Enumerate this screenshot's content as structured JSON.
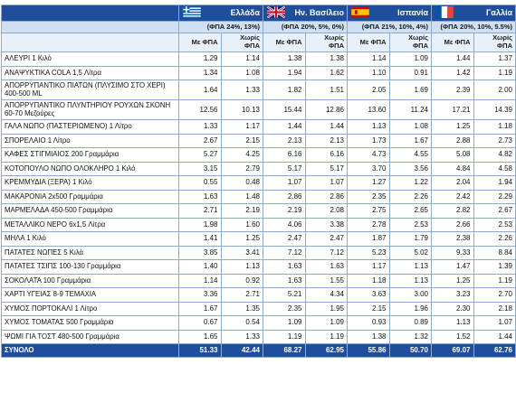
{
  "header": {
    "countries": [
      {
        "name": "Ελλάδα",
        "vat": "(ΦΠΑ 24%, 13%)",
        "flag": "greece-flag-icon"
      },
      {
        "name": "Ην. Βασίλειο",
        "vat": "(ΦΠΑ 20%, 5%, 0%)",
        "flag": "uk-flag-icon"
      },
      {
        "name": "Ισπανία",
        "vat": "(ΦΠΑ 21%, 10%, 4%)",
        "flag": "spain-flag-icon"
      },
      {
        "name": "Γαλλία",
        "vat": "(ΦΠΑ 20%, 10%, 5.5%)",
        "flag": "france-flag-icon"
      }
    ],
    "with_vat": "Με ΦΠΑ",
    "without_vat": "Χωρίς ΦΠΑ"
  },
  "rows": [
    {
      "name": "ΑΛΕΥΡΙ 1 Κιλό",
      "v": [
        "1.29",
        "1.14",
        "1.38",
        "1.38",
        "1.14",
        "1.09",
        "1.44",
        "1.37"
      ]
    },
    {
      "name": "ΑΝΑΨΥΚΤΙΚΑ COLA 1,5 Λίτρα",
      "v": [
        "1.34",
        "1.08",
        "1.94",
        "1.62",
        "1.10",
        "0.91",
        "1.42",
        "1.19"
      ]
    },
    {
      "name": "ΑΠΟΡΡΥΠΑΝΤΙΚΟ ΠΙΑΤΩΝ (ΠΛΥΣΙΜΟ ΣΤΟ ΧΕΡΙ) 400-500 ML",
      "v": [
        "1.64",
        "1.33",
        "1.82",
        "1.51",
        "2.05",
        "1.69",
        "2.39",
        "2.00"
      ]
    },
    {
      "name": "ΑΠΟΡΡΥΠΑΝΤΙΚΟ ΠΛΥΝΤΗΡΙΟΥ ΡΟΥΧΩΝ ΣΚΟΝΗ 60-70 Μεζούρες",
      "v": [
        "12.56",
        "10.13",
        "15.44",
        "12.86",
        "13.60",
        "11.24",
        "17.21",
        "14.39"
      ]
    },
    {
      "name": "ΓΑΛΑ ΝΩΠΟ (ΠΑΣΤΕΡΙΩΜΕΝΟ) 1 Λίτρο",
      "v": [
        "1.33",
        "1.17",
        "1.44",
        "1.44",
        "1.13",
        "1.08",
        "1.25",
        "1.18"
      ]
    },
    {
      "name": "ΣΠΟΡΕΛΑΙΟ 1 Λίτρο",
      "v": [
        "2.67",
        "2.15",
        "2.13",
        "2.13",
        "1.73",
        "1.67",
        "2.88",
        "2.73"
      ]
    },
    {
      "name": "ΚΑΦΕΣ ΣΤΙΓΜΙΑΙΟΣ 200 Γραμμάρια",
      "v": [
        "5.27",
        "4.25",
        "6.16",
        "6.16",
        "4.73",
        "4.55",
        "5.08",
        "4.82"
      ]
    },
    {
      "name": "ΚΟΤΟΠΟΥΛΟ ΝΩΠΟ ΟΛΟΚΛΗΡΟ 1 Κιλό",
      "v": [
        "3.15",
        "2.79",
        "5.17",
        "5.17",
        "3.70",
        "3.56",
        "4.84",
        "4.58"
      ]
    },
    {
      "name": "ΚΡΕΜΜΥΔΙΑ (ΞΕΡΑ) 1 Κιλό",
      "v": [
        "0.55",
        "0.48",
        "1.07",
        "1.07",
        "1.27",
        "1.22",
        "2.04",
        "1.94"
      ]
    },
    {
      "name": "ΜΑΚΑΡΟΝΙΑ 2x500 Γραμμάρια",
      "v": [
        "1.63",
        "1.48",
        "2.86",
        "2.86",
        "2.35",
        "2.26",
        "2.42",
        "2.29"
      ]
    },
    {
      "name": "ΜΑΡΜΕΛΑΔΑ 450-500 Γραμμάρια",
      "v": [
        "2.71",
        "2.19",
        "2.19",
        "2.08",
        "2.75",
        "2.65",
        "2.82",
        "2.67"
      ]
    },
    {
      "name": "ΜΕΤΑΛΛΙΚΟ ΝΕΡΟ 6x1,5 Λίτρα",
      "v": [
        "1.98",
        "1.60",
        "4.06",
        "3.38",
        "2.78",
        "2.53",
        "2.66",
        "2.53"
      ]
    },
    {
      "name": "ΜΗΛΑ 1 Κιλό",
      "v": [
        "1.41",
        "1.25",
        "2.47",
        "2.47",
        "1.87",
        "1.79",
        "2.38",
        "2.26"
      ]
    },
    {
      "name": "ΠΑΤΑΤΕΣ ΝΩΠΕΣ 5 Κιλά",
      "v": [
        "3.85",
        "3.41",
        "7.12",
        "7.12",
        "5.23",
        "5.02",
        "9.33",
        "8.84"
      ]
    },
    {
      "name": "ΠΑΤΑΤΕΣ ΤΣΙΠΣ 100-130 Γραμμάρια",
      "v": [
        "1.40",
        "1.13",
        "1.63",
        "1.63",
        "1.17",
        "1.13",
        "1.47",
        "1.39"
      ]
    },
    {
      "name": "ΣΟΚΟΛΑΤΑ 100 Γραμμάρια",
      "v": [
        "1.14",
        "0.92",
        "1.63",
        "1.55",
        "1.18",
        "1.13",
        "1.25",
        "1.19"
      ]
    },
    {
      "name": "ΧΑΡΤΙ ΥΓΕΙΑΣ 8-9 ΤΕΜΑΧΙΑ",
      "v": [
        "3.36",
        "2.71",
        "5.21",
        "4.34",
        "3.63",
        "3.00",
        "3.23",
        "2.70"
      ]
    },
    {
      "name": "ΧΥΜΟΣ ΠΟΡΤΟΚΑΛΙ 1 Λίτρο",
      "v": [
        "1.67",
        "1.35",
        "2.35",
        "1.95",
        "2.15",
        "1.96",
        "2.30",
        "2.18"
      ]
    },
    {
      "name": "ΧΥΜΟΣ ΤΟΜΑΤΑΣ 500 Γραμμάρια",
      "v": [
        "0.67",
        "0.54",
        "1.09",
        "1.09",
        "0.93",
        "0.89",
        "1.13",
        "1.07"
      ]
    },
    {
      "name": "ΨΩΜΙ ΓΙΑ ΤΟΣΤ 480-500 Γραμμάρια",
      "v": [
        "1.65",
        "1.33",
        "1.19",
        "1.19",
        "1.38",
        "1.32",
        "1.52",
        "1.44"
      ]
    }
  ],
  "total": {
    "name": "ΣΥΝΟΛΟ",
    "v": [
      "51.33",
      "42.44",
      "68.27",
      "62.95",
      "55.86",
      "50.70",
      "69.07",
      "62.76"
    ]
  },
  "colors": {
    "header_bg": "#1f4e9c",
    "vat_bg": "#cfe0f3",
    "border": "#8eaad3"
  }
}
